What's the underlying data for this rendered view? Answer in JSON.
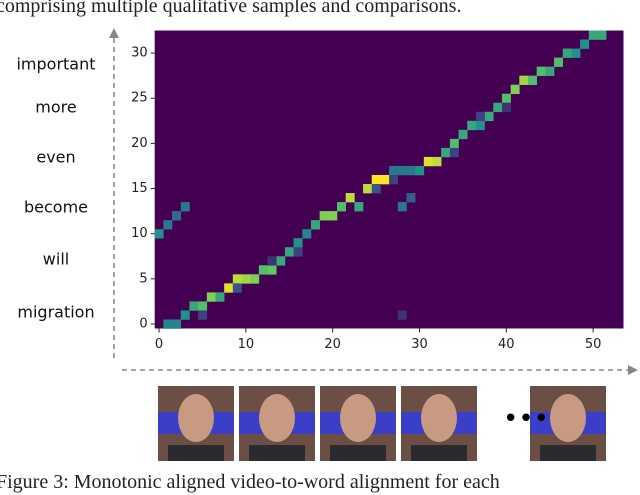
{
  "caption_top": "comprising multiple qualitative samples and comparisons.",
  "caption_bottom": "Figure 3: Monotonic aligned video-to-word alignment for each",
  "chart_data": {
    "type": "heatmap",
    "colormap": "viridis",
    "words": [
      "important",
      "more",
      "even",
      "become",
      "will",
      "migration"
    ],
    "xlim": [
      -0.5,
      53.5
    ],
    "ylim": [
      -0.5,
      32.5
    ],
    "xticks": [
      0,
      10,
      20,
      30,
      40,
      50
    ],
    "yticks": [
      0,
      5,
      10,
      15,
      20,
      25,
      30
    ],
    "cells": [
      {
        "x": 1,
        "y": 0,
        "value": 0.45
      },
      {
        "x": 2,
        "y": 0,
        "value": 0.45
      },
      {
        "x": 3,
        "y": 1,
        "value": 0.5
      },
      {
        "x": 4,
        "y": 2,
        "value": 0.6
      },
      {
        "x": 5,
        "y": 2,
        "value": 0.7
      },
      {
        "x": 6,
        "y": 3,
        "value": 0.8
      },
      {
        "x": 7,
        "y": 3,
        "value": 0.6
      },
      {
        "x": 8,
        "y": 4,
        "value": 0.95
      },
      {
        "x": 9,
        "y": 5,
        "value": 0.9
      },
      {
        "x": 10,
        "y": 5,
        "value": 0.85
      },
      {
        "x": 11,
        "y": 5,
        "value": 0.8
      },
      {
        "x": 12,
        "y": 6,
        "value": 0.7
      },
      {
        "x": 13,
        "y": 6,
        "value": 0.75
      },
      {
        "x": 14,
        "y": 7,
        "value": 0.6
      },
      {
        "x": 15,
        "y": 8,
        "value": 0.6
      },
      {
        "x": 16,
        "y": 9,
        "value": 0.5
      },
      {
        "x": 17,
        "y": 10,
        "value": 0.45
      },
      {
        "x": 18,
        "y": 11,
        "value": 0.6
      },
      {
        "x": 19,
        "y": 12,
        "value": 0.8
      },
      {
        "x": 20,
        "y": 12,
        "value": 0.8
      },
      {
        "x": 21,
        "y": 13,
        "value": 0.7
      },
      {
        "x": 22,
        "y": 14,
        "value": 0.9
      },
      {
        "x": 23,
        "y": 13,
        "value": 0.6
      },
      {
        "x": 24,
        "y": 15,
        "value": 0.9
      },
      {
        "x": 25,
        "y": 16,
        "value": 1
      },
      {
        "x": 26,
        "y": 16,
        "value": 1
      },
      {
        "x": 27,
        "y": 17,
        "value": 0.4
      },
      {
        "x": 28,
        "y": 17,
        "value": 0.4
      },
      {
        "x": 29,
        "y": 17,
        "value": 0.4
      },
      {
        "x": 30,
        "y": 17,
        "value": 0.5
      },
      {
        "x": 31,
        "y": 18,
        "value": 0.95
      },
      {
        "x": 32,
        "y": 18,
        "value": 0.9
      },
      {
        "x": 33,
        "y": 19,
        "value": 0.6
      },
      {
        "x": 34,
        "y": 20,
        "value": 0.7
      },
      {
        "x": 35,
        "y": 21,
        "value": 0.6
      },
      {
        "x": 36,
        "y": 22,
        "value": 0.6
      },
      {
        "x": 37,
        "y": 22,
        "value": 0.5
      },
      {
        "x": 38,
        "y": 23,
        "value": 0.6
      },
      {
        "x": 39,
        "y": 24,
        "value": 0.6
      },
      {
        "x": 40,
        "y": 25,
        "value": 0.7
      },
      {
        "x": 41,
        "y": 26,
        "value": 0.8
      },
      {
        "x": 42,
        "y": 27,
        "value": 0.85
      },
      {
        "x": 43,
        "y": 27,
        "value": 0.7
      },
      {
        "x": 44,
        "y": 28,
        "value": 0.7
      },
      {
        "x": 45,
        "y": 28,
        "value": 0.6
      },
      {
        "x": 46,
        "y": 29,
        "value": 0.7
      },
      {
        "x": 47,
        "y": 30,
        "value": 0.6
      },
      {
        "x": 48,
        "y": 30,
        "value": 0.5
      },
      {
        "x": 49,
        "y": 31,
        "value": 0.5
      },
      {
        "x": 50,
        "y": 32,
        "value": 0.6
      },
      {
        "x": 51,
        "y": 32,
        "value": 0.6
      },
      {
        "x": 0,
        "y": 10,
        "value": 0.5
      },
      {
        "x": 1,
        "y": 11,
        "value": 0.4
      },
      {
        "x": 2,
        "y": 12,
        "value": 0.35
      },
      {
        "x": 3,
        "y": 13,
        "value": 0.4
      },
      {
        "x": 28,
        "y": 13,
        "value": 0.4
      },
      {
        "x": 29,
        "y": 14,
        "value": 0.3
      },
      {
        "x": 27,
        "y": 16,
        "value": 0.2
      },
      {
        "x": 34,
        "y": 19,
        "value": 0.2
      },
      {
        "x": 37,
        "y": 23,
        "value": 0.2
      },
      {
        "x": 40,
        "y": 24,
        "value": 0.15
      },
      {
        "x": 16,
        "y": 8,
        "value": 0.2
      },
      {
        "x": 13,
        "y": 7,
        "value": 0.15
      },
      {
        "x": 28,
        "y": 1,
        "value": 0.15
      },
      {
        "x": 5,
        "y": 1,
        "value": 0.2
      },
      {
        "x": 9,
        "y": 4,
        "value": 0.25
      },
      {
        "x": 25,
        "y": 15,
        "value": 0.25
      }
    ]
  }
}
